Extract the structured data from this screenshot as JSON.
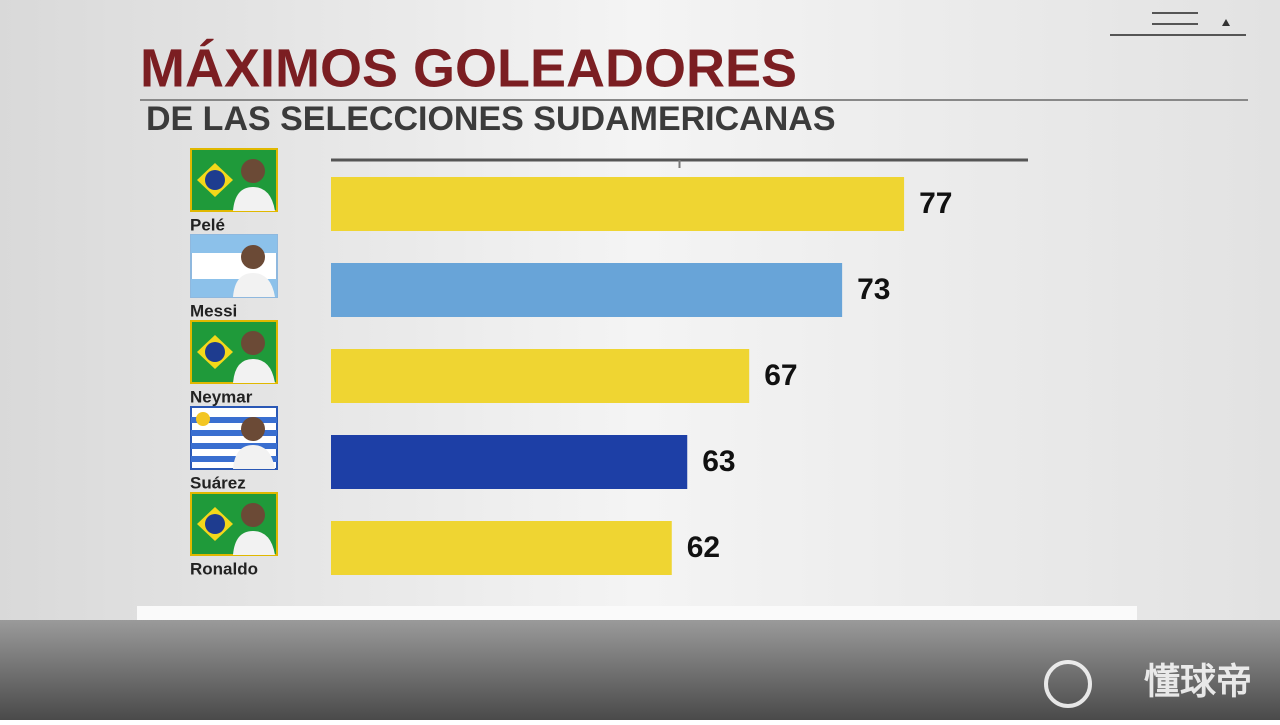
{
  "chart_data": {
    "type": "bar",
    "orientation": "horizontal",
    "title": "MÁXIMOS GOLEADORES",
    "subtitle": "DE LAS SELECCIONES SUDAMERICANAS",
    "categories": [
      "Pelé",
      "Messi",
      "Neymar",
      "Suárez",
      "Ronaldo"
    ],
    "values": [
      77,
      73,
      67,
      63,
      62
    ],
    "colors": [
      "#efd532",
      "#68a4d8",
      "#efd532",
      "#1d3fa6",
      "#efd532"
    ],
    "xlim": [
      40,
      85
    ]
  },
  "watermark": "懂球帝"
}
